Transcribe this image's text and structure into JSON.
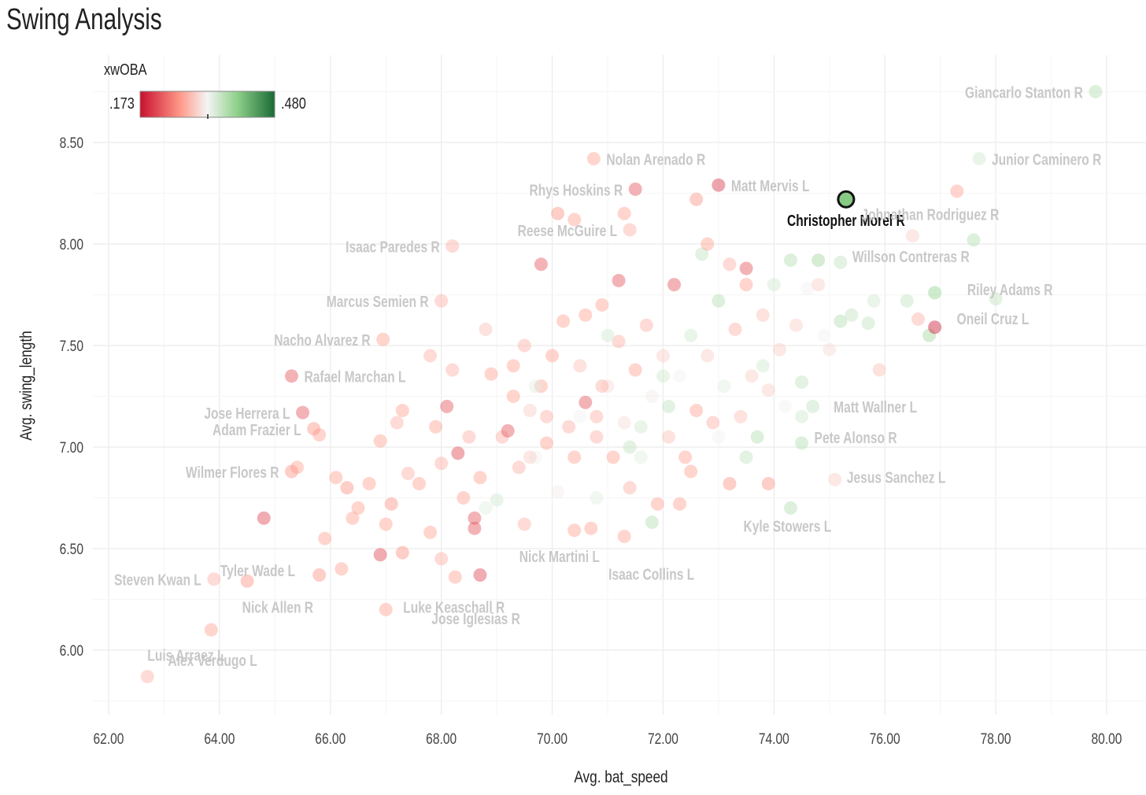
{
  "page": {
    "title": "Swing Analysis"
  },
  "legend": {
    "title": "xwOBA",
    "min_label": ".173",
    "max_label": ".480",
    "colors": [
      "#c8102e",
      "#ff9a8a",
      "#f4f4f4",
      "#8fd18a",
      "#1a6b35"
    ]
  },
  "chart_data": {
    "type": "scatter",
    "title": "Swing Analysis",
    "xlabel": "Avg. bat_speed",
    "ylabel": "Avg. swing_length",
    "xlim": [
      62,
      80
    ],
    "ylim": [
      6,
      8.5
    ],
    "x_ticks": [
      "62.00",
      "64.00",
      "66.00",
      "68.00",
      "70.00",
      "72.00",
      "74.00",
      "76.00",
      "78.00",
      "80.00"
    ],
    "y_ticks": [
      "6.00",
      "6.50",
      "7.00",
      "7.50",
      "8.00",
      "8.50"
    ],
    "color_scale": {
      "variable": "xwOBA",
      "min": 0.173,
      "max": 0.48
    },
    "grid": true,
    "highlight": "Christopher Morel R",
    "labeled_points": [
      {
        "label": "Giancarlo Stanton R",
        "x": 79.8,
        "y": 8.75,
        "xwoba": 0.37
      },
      {
        "label": "Junior Caminero R",
        "x": 77.7,
        "y": 8.42,
        "xwoba": 0.35
      },
      {
        "label": "Nolan Arenado R",
        "x": 70.75,
        "y": 8.42,
        "xwoba": 0.27
      },
      {
        "label": "Matt Mervis L",
        "x": 73.0,
        "y": 8.29,
        "xwoba": 0.2
      },
      {
        "label": "Rhys Hoskins R",
        "x": 71.5,
        "y": 8.27,
        "xwoba": 0.22
      },
      {
        "label": "Christopher Morel R",
        "x": 75.3,
        "y": 8.22,
        "xwoba": 0.4
      },
      {
        "label": "Johnathan Rodriguez R",
        "x": 76.5,
        "y": 8.04,
        "xwoba": 0.3
      },
      {
        "label": "Reese McGuire L",
        "x": 71.4,
        "y": 8.07,
        "xwoba": 0.28
      },
      {
        "label": "Riley Adams R",
        "x": 77.6,
        "y": 8.02,
        "xwoba": 0.37
      },
      {
        "label": "Willson Contreras R",
        "x": 75.2,
        "y": 7.91,
        "xwoba": 0.36
      },
      {
        "label": "Isaac Paredes R",
        "x": 68.2,
        "y": 7.99,
        "xwoba": 0.28
      },
      {
        "label": "Marcus Semien R",
        "x": 68.0,
        "y": 7.72,
        "xwoba": 0.28
      },
      {
        "label": "Oneil Cruz L",
        "x": 76.9,
        "y": 7.59,
        "xwoba": 0.18
      },
      {
        "label": "Nacho Alvarez R",
        "x": 66.95,
        "y": 7.53,
        "xwoba": 0.27
      },
      {
        "label": "Rafael Marchan L",
        "x": 65.3,
        "y": 7.35,
        "xwoba": 0.22
      },
      {
        "label": "Matt Wallner L",
        "x": 75.9,
        "y": 7.38,
        "xwoba": 0.29
      },
      {
        "label": "Jose Herrera L",
        "x": 65.5,
        "y": 7.17,
        "xwoba": 0.22
      },
      {
        "label": "Pete Alonso R",
        "x": 74.5,
        "y": 7.02,
        "xwoba": 0.37
      },
      {
        "label": "Adam Frazier L",
        "x": 65.7,
        "y": 7.09,
        "xwoba": 0.26
      },
      {
        "label": "Wilmer Flores R",
        "x": 65.3,
        "y": 6.88,
        "xwoba": 0.26
      },
      {
        "label": "Jesus Sanchez L",
        "x": 75.1,
        "y": 6.84,
        "xwoba": 0.3
      },
      {
        "label": "Kyle Stowers L",
        "x": 74.3,
        "y": 6.7,
        "xwoba": 0.37
      },
      {
        "label": "Tyler Wade L",
        "x": 65.9,
        "y": 6.55,
        "xwoba": 0.27
      },
      {
        "label": "Nick Martini L",
        "x": 70.4,
        "y": 6.59,
        "xwoba": 0.27
      },
      {
        "label": "Isaac Collins L",
        "x": 71.3,
        "y": 6.56,
        "xwoba": 0.27
      },
      {
        "label": "Jose Iglesias R",
        "x": 68.25,
        "y": 6.36,
        "xwoba": 0.27
      },
      {
        "label": "Steven Kwan L",
        "x": 63.9,
        "y": 6.35,
        "xwoba": 0.28
      },
      {
        "label": "Nick Allen R",
        "x": 65.8,
        "y": 6.37,
        "xwoba": 0.26
      },
      {
        "label": "Luke Keaschall R",
        "x": 67.0,
        "y": 6.2,
        "xwoba": 0.27
      },
      {
        "label": "Alex Verdugo L",
        "x": 63.85,
        "y": 6.1,
        "xwoba": 0.27
      },
      {
        "label": "Luis Arraez L",
        "x": 62.7,
        "y": 5.87,
        "xwoba": 0.28
      }
    ],
    "background_points": [
      [
        64.5,
        6.34,
        0.26
      ],
      [
        64.8,
        6.65,
        0.21
      ],
      [
        65.4,
        6.9,
        0.27
      ],
      [
        65.8,
        7.06,
        0.27
      ],
      [
        66.1,
        6.85,
        0.27
      ],
      [
        66.2,
        6.4,
        0.27
      ],
      [
        66.3,
        6.8,
        0.26
      ],
      [
        66.5,
        6.7,
        0.27
      ],
      [
        66.7,
        6.82,
        0.27
      ],
      [
        66.9,
        7.03,
        0.27
      ],
      [
        67.1,
        6.72,
        0.26
      ],
      [
        67.0,
        6.62,
        0.27
      ],
      [
        66.9,
        6.47,
        0.21
      ],
      [
        67.2,
        7.12,
        0.28
      ],
      [
        67.3,
        7.18,
        0.27
      ],
      [
        67.4,
        6.87,
        0.28
      ],
      [
        67.6,
        6.82,
        0.27
      ],
      [
        67.8,
        6.58,
        0.27
      ],
      [
        67.8,
        7.45,
        0.28
      ],
      [
        67.9,
        7.1,
        0.27
      ],
      [
        68.0,
        6.92,
        0.28
      ],
      [
        68.1,
        7.2,
        0.22
      ],
      [
        68.2,
        7.38,
        0.28
      ],
      [
        68.3,
        6.97,
        0.21
      ],
      [
        68.4,
        6.75,
        0.27
      ],
      [
        68.5,
        7.05,
        0.28
      ],
      [
        68.6,
        6.65,
        0.22
      ],
      [
        68.7,
        6.85,
        0.27
      ],
      [
        68.8,
        7.58,
        0.29
      ],
      [
        68.9,
        7.36,
        0.27
      ],
      [
        69.0,
        6.74,
        0.35
      ],
      [
        69.1,
        7.05,
        0.28
      ],
      [
        69.2,
        7.08,
        0.22
      ],
      [
        69.3,
        7.25,
        0.27
      ],
      [
        69.4,
        6.9,
        0.28
      ],
      [
        69.5,
        7.5,
        0.28
      ],
      [
        69.6,
        7.18,
        0.3
      ],
      [
        69.7,
        6.95,
        0.33
      ],
      [
        69.8,
        7.3,
        0.27
      ],
      [
        69.9,
        7.02,
        0.27
      ],
      [
        70.0,
        7.45,
        0.27
      ],
      [
        70.1,
        6.78,
        0.32
      ],
      [
        70.2,
        7.62,
        0.27
      ],
      [
        70.3,
        7.1,
        0.28
      ],
      [
        70.4,
        6.95,
        0.27
      ],
      [
        70.5,
        7.4,
        0.29
      ],
      [
        70.6,
        7.22,
        0.22
      ],
      [
        70.7,
        6.6,
        0.27
      ],
      [
        70.8,
        7.05,
        0.28
      ],
      [
        70.9,
        7.7,
        0.27
      ],
      [
        71.0,
        7.3,
        0.31
      ],
      [
        71.1,
        6.95,
        0.27
      ],
      [
        71.2,
        7.52,
        0.28
      ],
      [
        71.3,
        7.12,
        0.31
      ],
      [
        71.4,
        6.8,
        0.28
      ],
      [
        71.5,
        7.38,
        0.27
      ],
      [
        71.6,
        6.95,
        0.34
      ],
      [
        71.7,
        7.6,
        0.28
      ],
      [
        71.8,
        7.25,
        0.32
      ],
      [
        71.9,
        6.72,
        0.27
      ],
      [
        72.0,
        7.45,
        0.3
      ],
      [
        72.1,
        7.05,
        0.29
      ],
      [
        72.2,
        7.8,
        0.22
      ],
      [
        72.3,
        7.35,
        0.33
      ],
      [
        72.4,
        6.95,
        0.27
      ],
      [
        72.5,
        7.55,
        0.35
      ],
      [
        72.6,
        7.18,
        0.27
      ],
      [
        72.7,
        7.95,
        0.36
      ],
      [
        72.8,
        7.45,
        0.3
      ],
      [
        72.9,
        7.12,
        0.28
      ],
      [
        73.0,
        7.72,
        0.37
      ],
      [
        73.1,
        7.3,
        0.34
      ],
      [
        73.2,
        6.82,
        0.26
      ],
      [
        73.3,
        7.58,
        0.28
      ],
      [
        73.4,
        7.15,
        0.29
      ],
      [
        73.5,
        7.88,
        0.22
      ],
      [
        73.6,
        7.35,
        0.3
      ],
      [
        73.7,
        7.05,
        0.37
      ],
      [
        73.8,
        7.65,
        0.29
      ],
      [
        73.9,
        7.28,
        0.3
      ],
      [
        74.0,
        7.8,
        0.35
      ],
      [
        74.1,
        7.48,
        0.3
      ],
      [
        74.2,
        7.2,
        0.33
      ],
      [
        74.3,
        7.92,
        0.37
      ],
      [
        74.4,
        7.6,
        0.3
      ],
      [
        74.5,
        7.32,
        0.36
      ],
      [
        74.6,
        7.78,
        0.33
      ],
      [
        74.7,
        7.2,
        0.36
      ],
      [
        74.8,
        7.92,
        0.38
      ],
      [
        74.9,
        7.55,
        0.33
      ],
      [
        75.2,
        7.62,
        0.37
      ],
      [
        75.4,
        7.65,
        0.36
      ],
      [
        75.7,
        7.61,
        0.36
      ],
      [
        75.8,
        7.72,
        0.35
      ],
      [
        76.4,
        7.72,
        0.36
      ],
      [
        76.6,
        7.63,
        0.28
      ],
      [
        76.8,
        7.55,
        0.38
      ],
      [
        76.9,
        7.76,
        0.39
      ],
      [
        77.3,
        8.26,
        0.27
      ],
      [
        78.0,
        7.73,
        0.36
      ],
      [
        75.0,
        7.48,
        0.31
      ],
      [
        74.5,
        7.15,
        0.35
      ],
      [
        73.5,
        6.95,
        0.36
      ],
      [
        72.3,
        6.72,
        0.27
      ],
      [
        71.8,
        6.63,
        0.37
      ],
      [
        70.8,
        6.75,
        0.34
      ],
      [
        69.5,
        6.62,
        0.28
      ],
      [
        68.8,
        6.7,
        0.34
      ],
      [
        68.6,
        6.6,
        0.22
      ],
      [
        67.3,
        6.48,
        0.26
      ],
      [
        66.4,
        6.65,
        0.27
      ],
      [
        68.0,
        6.45,
        0.28
      ],
      [
        68.7,
        6.37,
        0.21
      ],
      [
        69.6,
        6.95,
        0.3
      ],
      [
        70.5,
        7.15,
        0.33
      ],
      [
        71.0,
        7.55,
        0.35
      ],
      [
        72.6,
        8.22,
        0.26
      ],
      [
        72.8,
        8.0,
        0.27
      ],
      [
        73.5,
        7.8,
        0.27
      ],
      [
        74.8,
        7.8,
        0.3
      ],
      [
        70.6,
        7.65,
        0.27
      ],
      [
        71.2,
        7.82,
        0.22
      ],
      [
        72.0,
        7.35,
        0.35
      ],
      [
        70.4,
        8.12,
        0.27
      ],
      [
        70.1,
        8.15,
        0.26
      ],
      [
        71.3,
        8.15,
        0.27
      ],
      [
        69.8,
        7.9,
        0.22
      ],
      [
        69.7,
        7.3,
        0.34
      ],
      [
        70.9,
        7.3,
        0.28
      ],
      [
        71.4,
        7.0,
        0.36
      ],
      [
        72.5,
        6.88,
        0.27
      ],
      [
        73.9,
        6.82,
        0.26
      ],
      [
        73.2,
        7.9,
        0.28
      ],
      [
        73.8,
        7.4,
        0.35
      ],
      [
        73.0,
        7.05,
        0.33
      ],
      [
        72.1,
        7.2,
        0.36
      ],
      [
        71.6,
        7.1,
        0.35
      ],
      [
        70.8,
        7.15,
        0.28
      ],
      [
        69.9,
        7.15,
        0.28
      ],
      [
        69.3,
        7.4,
        0.27
      ]
    ]
  }
}
